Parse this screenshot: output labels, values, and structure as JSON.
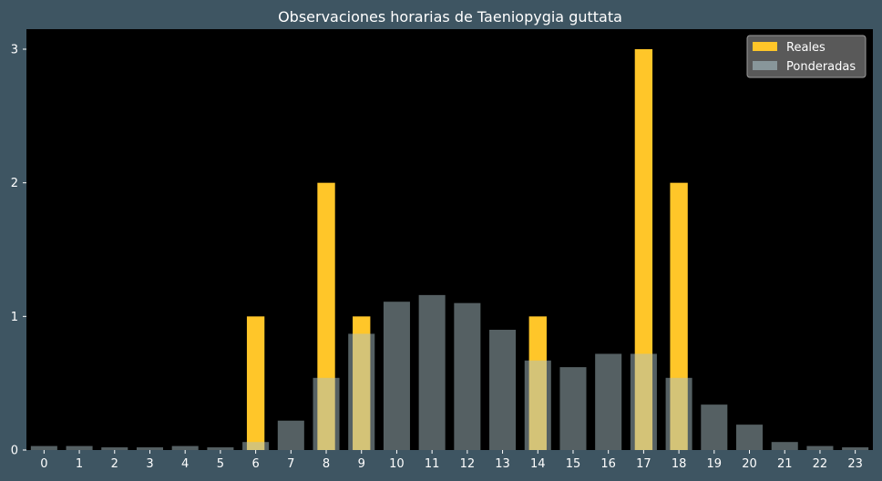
{
  "chart_data": {
    "type": "bar",
    "title": "Observaciones horarias de Taeniopygia guttata",
    "xlabel": "",
    "ylabel": "",
    "categories": [
      "0",
      "1",
      "2",
      "3",
      "4",
      "5",
      "6",
      "7",
      "8",
      "9",
      "10",
      "11",
      "12",
      "13",
      "14",
      "15",
      "16",
      "17",
      "18",
      "19",
      "20",
      "21",
      "22",
      "23"
    ],
    "ylim": [
      0,
      3.15
    ],
    "yticks": [
      0,
      1,
      2,
      3
    ],
    "grid": false,
    "legend_position": "top-right",
    "series": [
      {
        "name": "Reales",
        "color": "#ffc629",
        "values": [
          0,
          0,
          0,
          0,
          0,
          0,
          1,
          0,
          2,
          1,
          0,
          0,
          0,
          0,
          1,
          0,
          0,
          3,
          2,
          0,
          0,
          0,
          0,
          0
        ]
      },
      {
        "name": "Ponderadas",
        "color": "#a9c0c6",
        "values": [
          0.03,
          0.03,
          0.02,
          0.02,
          0.03,
          0.02,
          0.06,
          0.22,
          0.54,
          0.87,
          1.11,
          1.16,
          1.1,
          0.9,
          0.67,
          0.62,
          0.72,
          0.72,
          0.54,
          0.34,
          0.19,
          0.06,
          0.03,
          0.02
        ]
      }
    ]
  }
}
